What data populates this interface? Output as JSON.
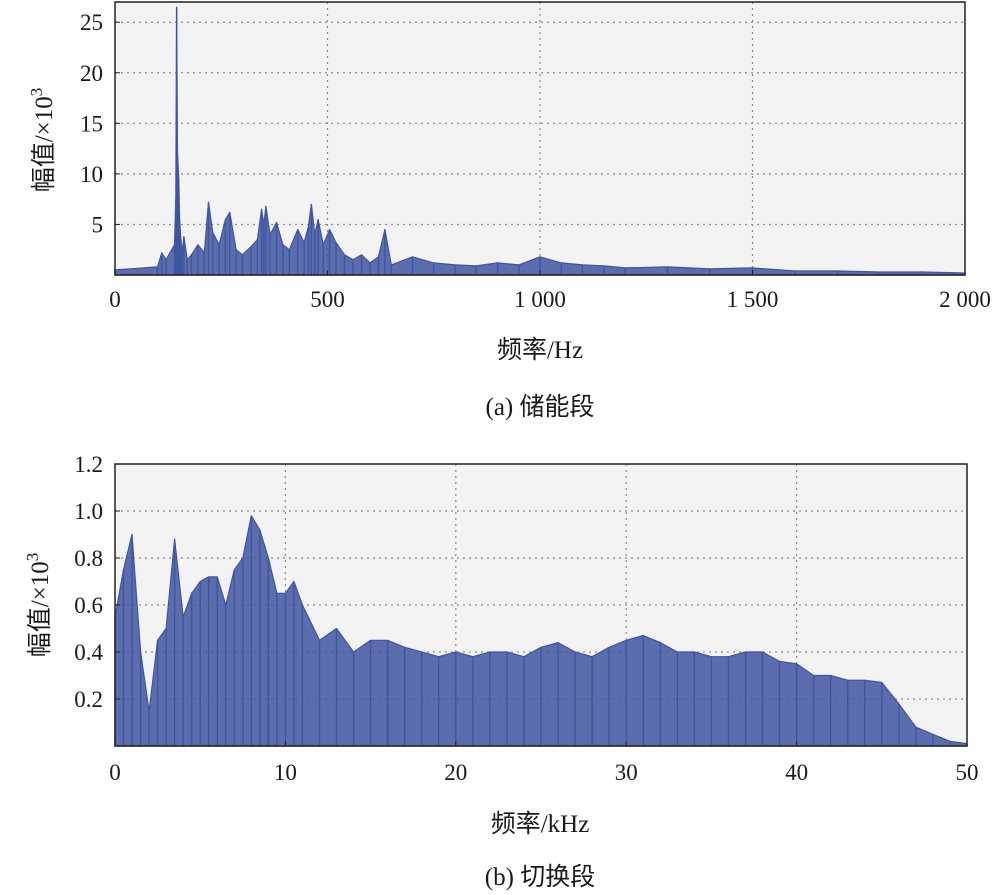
{
  "chart_data": [
    {
      "type": "line",
      "caption": "(a) 储能段",
      "xlabel": "频率/Hz",
      "ylabel": "幅值/×10",
      "ylabel_exponent": "3",
      "xlim": [
        0,
        2000
      ],
      "ylim": [
        0,
        27
      ],
      "xticks": [
        0,
        500,
        1000,
        1500,
        2000
      ],
      "xtick_labels": [
        "0",
        "500",
        "1 000",
        "1 500",
        "2 000"
      ],
      "yticks": [
        5,
        10,
        15,
        20,
        25
      ],
      "ytick_labels": [
        "5",
        "10",
        "15",
        "20",
        "25"
      ],
      "grid": true,
      "series_color": "#3f55a0",
      "plot_background": "#f3f3f3",
      "series": [
        {
          "x": [
            0,
            100,
            110,
            120,
            140,
            143,
            145,
            147,
            150,
            152,
            155,
            158,
            162,
            170,
            180,
            195,
            210,
            220,
            230,
            245,
            260,
            270,
            285,
            300,
            320,
            335,
            345,
            350,
            355,
            365,
            380,
            395,
            410,
            430,
            445,
            455,
            462,
            470,
            478,
            490,
            505,
            520,
            540,
            560,
            580,
            600,
            620,
            635,
            650,
            700,
            750,
            800,
            850,
            900,
            950,
            1000,
            1050,
            1100,
            1150,
            1200,
            1300,
            1400,
            1500,
            1600,
            1700,
            1800,
            1900,
            2000
          ],
          "values": [
            0.5,
            0.8,
            2.2,
            1.5,
            3.0,
            7.5,
            26.5,
            12.0,
            9.5,
            5.5,
            3.5,
            2.2,
            3.8,
            1.5,
            2.0,
            3.0,
            2.2,
            7.2,
            4.2,
            3.0,
            5.5,
            6.2,
            2.5,
            2.0,
            2.8,
            3.5,
            6.5,
            5.0,
            6.8,
            4.0,
            5.2,
            3.0,
            2.5,
            4.5,
            3.2,
            4.8,
            7.0,
            4.0,
            5.5,
            3.0,
            4.5,
            3.2,
            2.0,
            1.5,
            2.0,
            1.2,
            1.8,
            4.5,
            1.0,
            1.8,
            1.2,
            1.0,
            0.9,
            1.2,
            1.0,
            1.8,
            1.2,
            1.0,
            0.9,
            0.7,
            0.8,
            0.6,
            0.7,
            0.4,
            0.4,
            0.3,
            0.3,
            0.2
          ]
        }
      ]
    },
    {
      "type": "line",
      "caption": "(b) 切换段",
      "xlabel": "频率/kHz",
      "ylabel": "幅值/×10",
      "ylabel_exponent": "3",
      "xlim": [
        0,
        50
      ],
      "ylim": [
        0,
        1.2
      ],
      "xticks": [
        0,
        10,
        20,
        30,
        40,
        50
      ],
      "xtick_labels": [
        "0",
        "10",
        "20",
        "30",
        "40",
        "50"
      ],
      "yticks": [
        0.2,
        0.4,
        0.6,
        0.8,
        1.0,
        1.2
      ],
      "ytick_labels": [
        "0.2",
        "0.4",
        "0.6",
        "0.8",
        "1.0",
        "1.2"
      ],
      "grid": true,
      "series_color": "#3f55a0",
      "plot_background": "#f3f3f3",
      "series": [
        {
          "x": [
            0,
            0.5,
            1,
            1.5,
            2,
            2.5,
            3,
            3.5,
            4,
            4.5,
            5,
            5.5,
            6,
            6.5,
            7,
            7.5,
            8,
            8.5,
            9,
            9.5,
            10,
            10.5,
            11,
            12,
            13,
            14,
            15,
            16,
            17,
            18,
            19,
            20,
            21,
            22,
            23,
            24,
            25,
            26,
            27,
            28,
            29,
            30,
            31,
            32,
            33,
            34,
            35,
            36,
            37,
            38,
            39,
            40,
            41,
            42,
            43,
            44,
            45,
            46,
            47,
            48,
            49,
            50
          ],
          "values": [
            0.55,
            0.75,
            0.9,
            0.4,
            0.15,
            0.45,
            0.5,
            0.88,
            0.55,
            0.65,
            0.7,
            0.72,
            0.72,
            0.6,
            0.75,
            0.8,
            0.98,
            0.92,
            0.8,
            0.65,
            0.65,
            0.7,
            0.6,
            0.45,
            0.5,
            0.4,
            0.45,
            0.45,
            0.42,
            0.4,
            0.38,
            0.4,
            0.38,
            0.4,
            0.4,
            0.38,
            0.42,
            0.44,
            0.4,
            0.38,
            0.42,
            0.45,
            0.47,
            0.44,
            0.4,
            0.4,
            0.38,
            0.38,
            0.4,
            0.4,
            0.36,
            0.35,
            0.3,
            0.3,
            0.28,
            0.28,
            0.27,
            0.18,
            0.08,
            0.05,
            0.02,
            0.01
          ]
        }
      ]
    }
  ]
}
